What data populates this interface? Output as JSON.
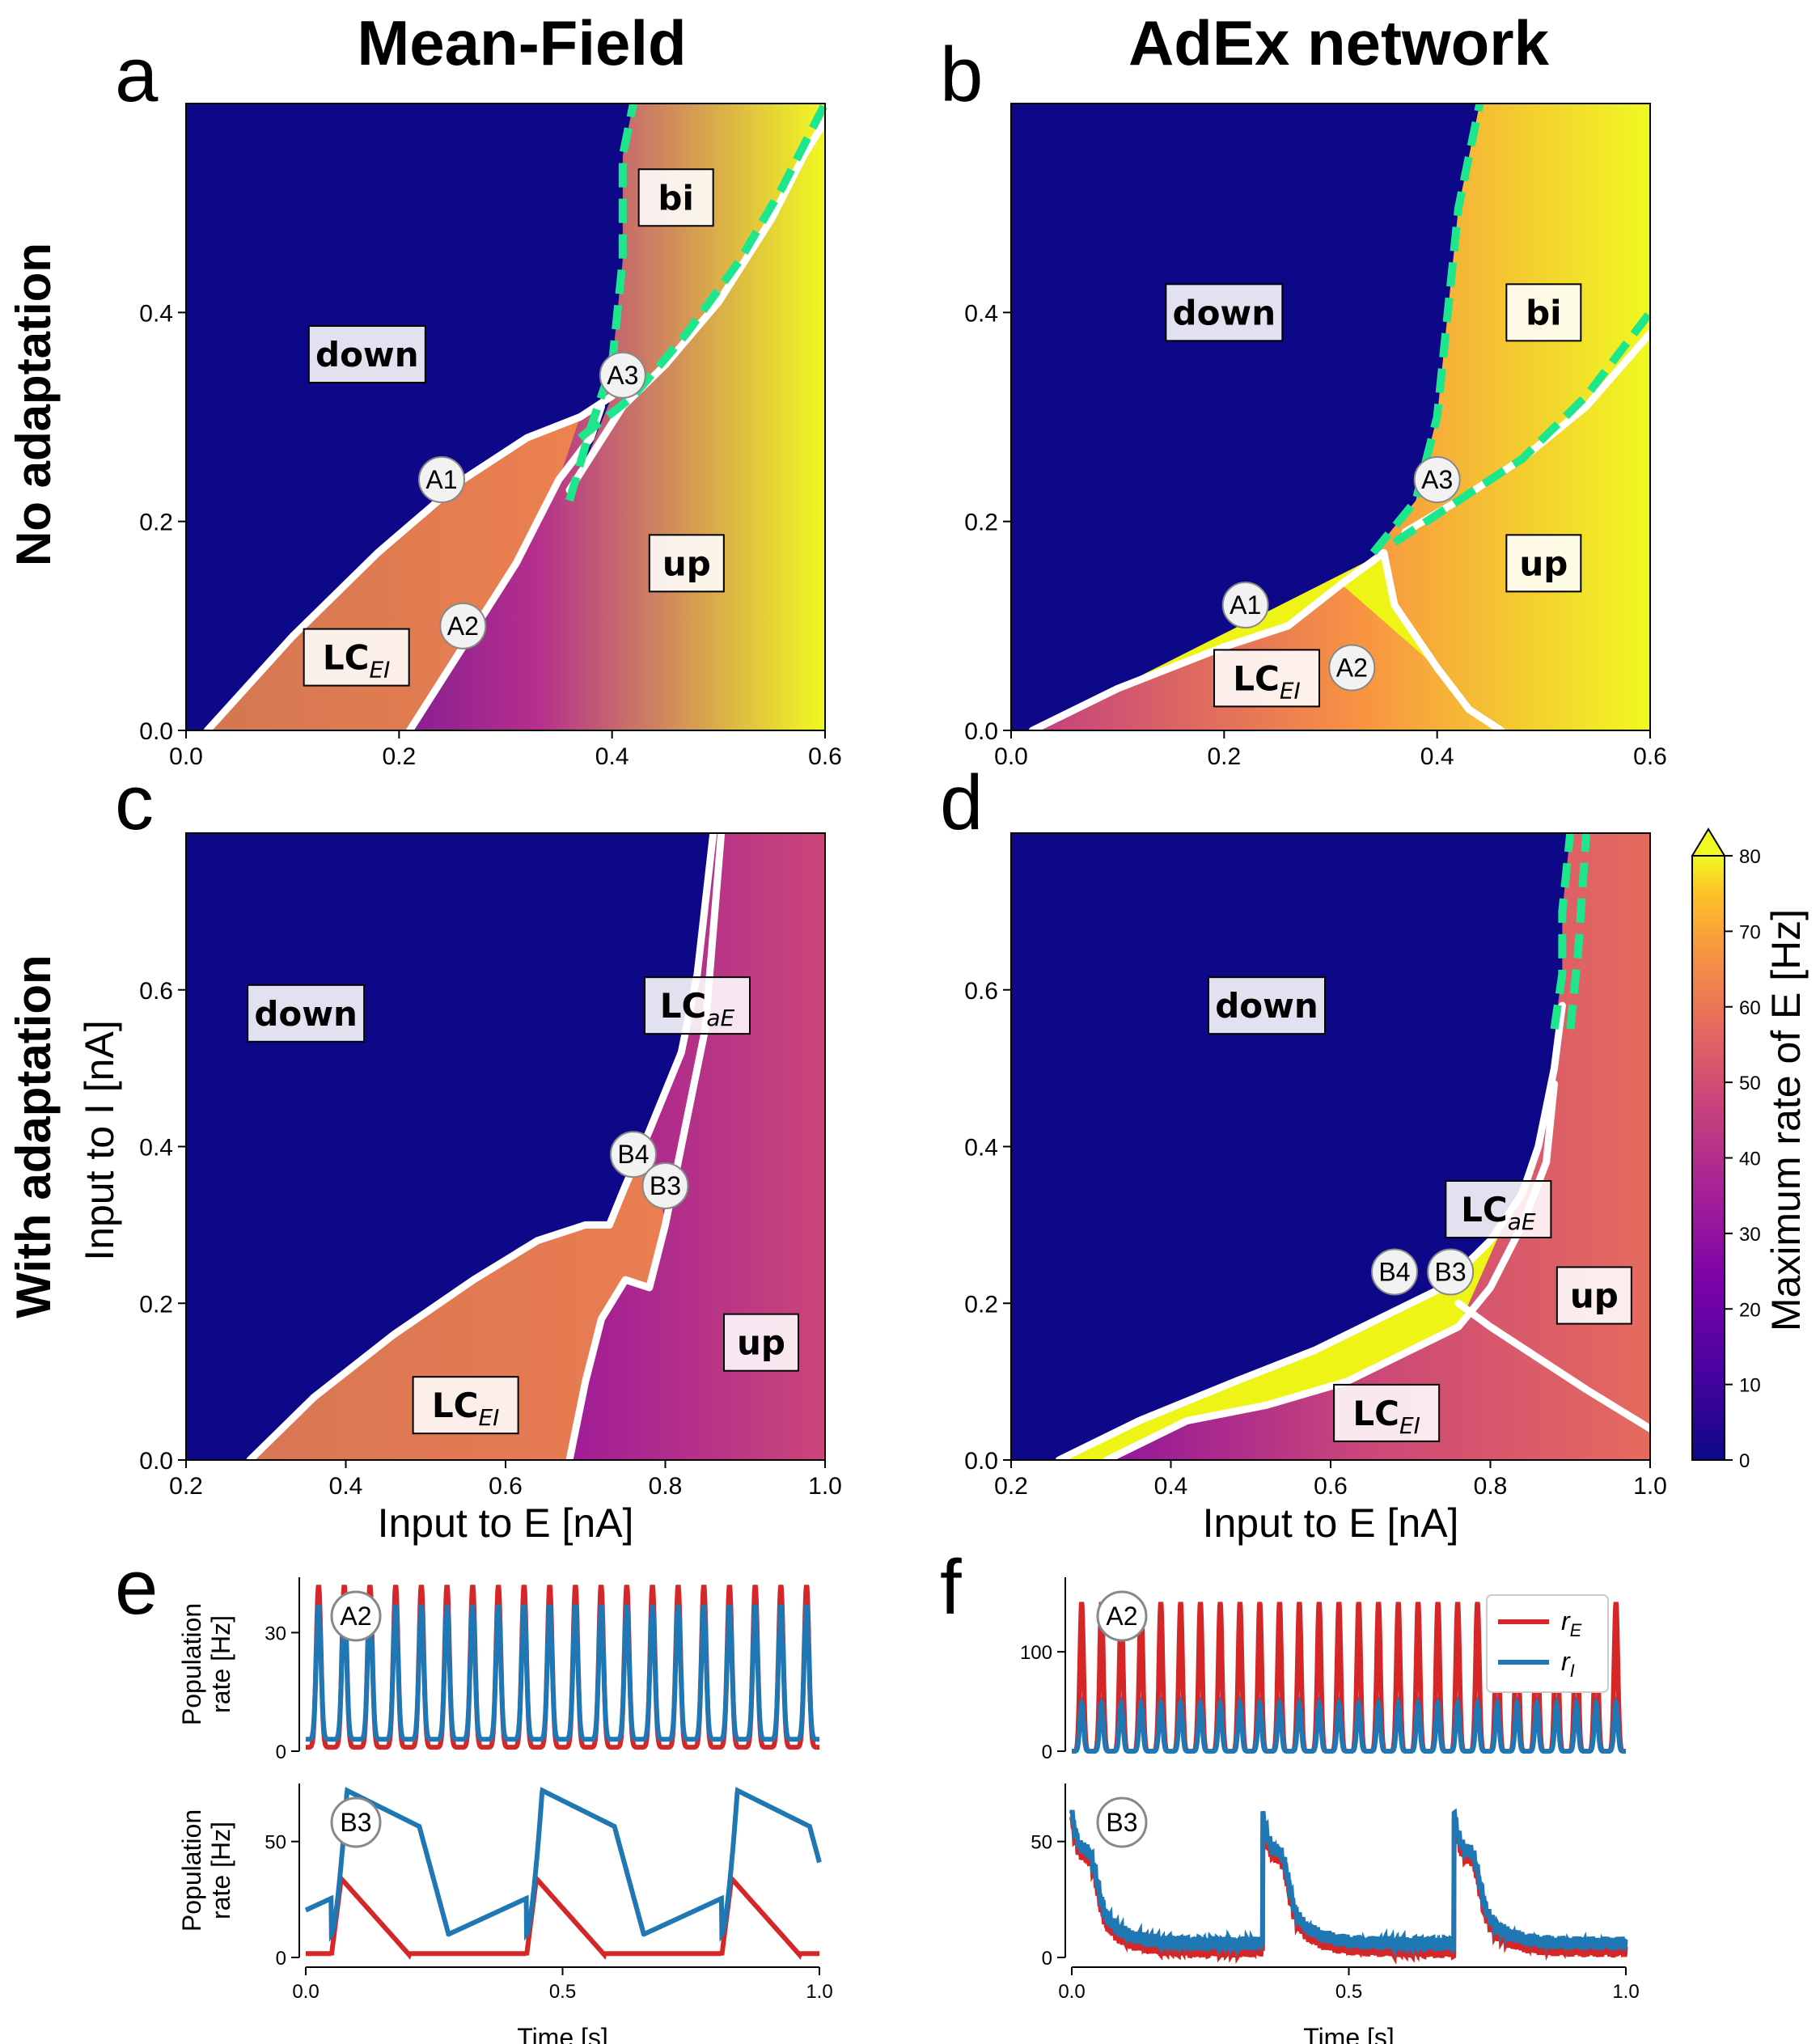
{
  "titles": {
    "col1": "Mean-Field",
    "col2": "AdEx network"
  },
  "panel_letters": [
    "a",
    "b",
    "c",
    "d",
    "e",
    "f"
  ],
  "row_labels": {
    "row1": "No adaptation",
    "row2": "With adaptation"
  },
  "colorbar": {
    "label": "Maximum rate of E [Hz]",
    "ticks": [
      "0",
      "10",
      "20",
      "30",
      "40",
      "50",
      "60",
      "70",
      "80"
    ],
    "range": [
      0,
      80
    ]
  },
  "colors": {
    "green": "#1ee68c",
    "white": "#ffffff",
    "rE": "#d62728",
    "rI": "#1f77b4",
    "navy": "#0d0887"
  },
  "icons": {
    "colorbar_extend": "triangle-up"
  },
  "chart_data": [
    {
      "panel": "a",
      "type": "heatmap",
      "title": "Mean-Field",
      "xlabel": "",
      "ylabel": "",
      "xlim": [
        0.0,
        0.6
      ],
      "ylim": [
        0.0,
        0.6
      ],
      "xticks": [
        "0.0",
        "0.2",
        "0.4",
        "0.6"
      ],
      "yticks": [
        "0.0",
        "0.2",
        "0.4"
      ],
      "regions": [
        {
          "label": "down",
          "x": 0.17,
          "y": 0.36
        },
        {
          "label": "bi",
          "x": 0.46,
          "y": 0.51
        },
        {
          "label": "up",
          "x": 0.47,
          "y": 0.16
        },
        {
          "label": "LC",
          "sub": "EI",
          "x": 0.16,
          "y": 0.07
        }
      ],
      "points": [
        {
          "label": "A1",
          "x": 0.24,
          "y": 0.24
        },
        {
          "label": "A2",
          "x": 0.26,
          "y": 0.1
        },
        {
          "label": "A3",
          "x": 0.41,
          "y": 0.34
        }
      ],
      "white_boundaries": [
        [
          [
            0.02,
            0.0
          ],
          [
            0.1,
            0.09
          ],
          [
            0.18,
            0.17
          ],
          [
            0.26,
            0.24
          ],
          [
            0.32,
            0.28
          ],
          [
            0.37,
            0.3
          ],
          [
            0.4,
            0.32
          ]
        ],
        [
          [
            0.21,
            0.0
          ],
          [
            0.26,
            0.08
          ],
          [
            0.31,
            0.16
          ],
          [
            0.35,
            0.24
          ],
          [
            0.38,
            0.28
          ],
          [
            0.39,
            0.31
          ]
        ],
        [
          [
            0.36,
            0.23
          ],
          [
            0.41,
            0.31
          ],
          [
            0.45,
            0.35
          ],
          [
            0.5,
            0.41
          ],
          [
            0.55,
            0.49
          ],
          [
            0.58,
            0.55
          ],
          [
            0.61,
            0.6
          ]
        ]
      ],
      "green_boundaries": [
        [
          [
            0.36,
            0.22
          ],
          [
            0.38,
            0.29
          ],
          [
            0.4,
            0.35
          ],
          [
            0.41,
            0.45
          ],
          [
            0.41,
            0.55
          ],
          [
            0.42,
            0.6
          ]
        ],
        [
          [
            0.37,
            0.28
          ],
          [
            0.42,
            0.32
          ],
          [
            0.47,
            0.38
          ],
          [
            0.52,
            0.45
          ],
          [
            0.56,
            0.52
          ],
          [
            0.6,
            0.6
          ]
        ]
      ]
    },
    {
      "panel": "b",
      "type": "heatmap",
      "title": "AdEx network",
      "xlabel": "",
      "ylabel": "",
      "xlim": [
        0.0,
        0.6
      ],
      "ylim": [
        0.0,
        0.6
      ],
      "xticks": [
        "0.0",
        "0.2",
        "0.4",
        "0.6"
      ],
      "yticks": [
        "0.0",
        "0.2",
        "0.4"
      ],
      "regions": [
        {
          "label": "down",
          "x": 0.2,
          "y": 0.4
        },
        {
          "label": "bi",
          "x": 0.5,
          "y": 0.4
        },
        {
          "label": "up",
          "x": 0.5,
          "y": 0.16
        },
        {
          "label": "LC",
          "sub": "EI",
          "x": 0.24,
          "y": 0.05
        }
      ],
      "points": [
        {
          "label": "A1",
          "x": 0.22,
          "y": 0.12
        },
        {
          "label": "A2",
          "x": 0.32,
          "y": 0.06
        },
        {
          "label": "A3",
          "x": 0.4,
          "y": 0.24
        }
      ],
      "white_boundaries": [
        [
          [
            0.02,
            0.0
          ],
          [
            0.1,
            0.04
          ],
          [
            0.2,
            0.08
          ],
          [
            0.26,
            0.1
          ],
          [
            0.31,
            0.14
          ],
          [
            0.35,
            0.17
          ]
        ],
        [
          [
            0.35,
            0.17
          ],
          [
            0.36,
            0.12
          ],
          [
            0.38,
            0.09
          ],
          [
            0.4,
            0.06
          ],
          [
            0.43,
            0.02
          ],
          [
            0.46,
            0.0
          ]
        ],
        [
          [
            0.37,
            0.19
          ],
          [
            0.42,
            0.22
          ],
          [
            0.48,
            0.26
          ],
          [
            0.54,
            0.31
          ],
          [
            0.6,
            0.38
          ]
        ]
      ],
      "green_boundaries": [
        [
          [
            0.34,
            0.17
          ],
          [
            0.38,
            0.22
          ],
          [
            0.4,
            0.3
          ],
          [
            0.41,
            0.4
          ],
          [
            0.42,
            0.5
          ],
          [
            0.44,
            0.6
          ]
        ],
        [
          [
            0.36,
            0.18
          ],
          [
            0.42,
            0.22
          ],
          [
            0.48,
            0.26
          ],
          [
            0.54,
            0.32
          ],
          [
            0.6,
            0.4
          ]
        ]
      ]
    },
    {
      "panel": "c",
      "type": "heatmap",
      "xlabel": "Input to E [nA]",
      "ylabel": "Input to I [nA]",
      "xlim": [
        0.2,
        1.0
      ],
      "ylim": [
        0.0,
        0.8
      ],
      "xticks": [
        "0.2",
        "0.4",
        "0.6",
        "0.8",
        "1.0"
      ],
      "yticks": [
        "0.0",
        "0.2",
        "0.4",
        "0.6"
      ],
      "regions": [
        {
          "label": "down",
          "x": 0.35,
          "y": 0.57
        },
        {
          "label": "LC",
          "sub": "aE",
          "x": 0.84,
          "y": 0.58
        },
        {
          "label": "up",
          "x": 0.92,
          "y": 0.15
        },
        {
          "label": "LC",
          "sub": "EI",
          "x": 0.55,
          "y": 0.07
        }
      ],
      "points": [
        {
          "label": "B4",
          "x": 0.76,
          "y": 0.39
        },
        {
          "label": "B3",
          "x": 0.8,
          "y": 0.35
        }
      ],
      "white_boundaries": [
        [
          [
            0.28,
            0.0
          ],
          [
            0.36,
            0.08
          ],
          [
            0.46,
            0.16
          ],
          [
            0.56,
            0.23
          ],
          [
            0.64,
            0.28
          ],
          [
            0.7,
            0.3
          ],
          [
            0.73,
            0.3
          ],
          [
            0.75,
            0.35
          ],
          [
            0.78,
            0.42
          ],
          [
            0.82,
            0.52
          ],
          [
            0.84,
            0.62
          ],
          [
            0.86,
            0.8
          ]
        ],
        [
          [
            0.68,
            0.0
          ],
          [
            0.7,
            0.1
          ],
          [
            0.72,
            0.18
          ],
          [
            0.75,
            0.23
          ],
          [
            0.78,
            0.22
          ],
          [
            0.8,
            0.3
          ],
          [
            0.82,
            0.4
          ],
          [
            0.85,
            0.55
          ],
          [
            0.87,
            0.8
          ]
        ]
      ],
      "green_boundaries": []
    },
    {
      "panel": "d",
      "type": "heatmap",
      "xlabel": "Input to E [nA]",
      "ylabel": "",
      "xlim": [
        0.2,
        1.0
      ],
      "ylim": [
        0.0,
        0.8
      ],
      "xticks": [
        "0.2",
        "0.4",
        "0.6",
        "0.8",
        "1.0"
      ],
      "yticks": [
        "0.0",
        "0.2",
        "0.4",
        "0.6"
      ],
      "regions": [
        {
          "label": "down",
          "x": 0.52,
          "y": 0.58
        },
        {
          "label": "LC",
          "sub": "aE",
          "x": 0.81,
          "y": 0.32
        },
        {
          "label": "up",
          "x": 0.93,
          "y": 0.21
        },
        {
          "label": "LC",
          "sub": "EI",
          "x": 0.67,
          "y": 0.06
        }
      ],
      "points": [
        {
          "label": "B4",
          "x": 0.68,
          "y": 0.24
        },
        {
          "label": "B3",
          "x": 0.75,
          "y": 0.24
        }
      ],
      "white_boundaries": [
        [
          [
            0.26,
            0.0
          ],
          [
            0.36,
            0.05
          ],
          [
            0.48,
            0.1
          ],
          [
            0.58,
            0.14
          ],
          [
            0.66,
            0.18
          ],
          [
            0.74,
            0.22
          ],
          [
            0.8,
            0.28
          ],
          [
            0.84,
            0.34
          ],
          [
            0.86,
            0.4
          ],
          [
            0.88,
            0.5
          ],
          [
            0.89,
            0.58
          ]
        ],
        [
          [
            0.32,
            0.0
          ],
          [
            0.42,
            0.05
          ],
          [
            0.52,
            0.07
          ],
          [
            0.62,
            0.1
          ],
          [
            0.7,
            0.14
          ],
          [
            0.76,
            0.17
          ],
          [
            0.8,
            0.22
          ],
          [
            0.84,
            0.3
          ],
          [
            0.87,
            0.38
          ],
          [
            0.88,
            0.48
          ]
        ],
        [
          [
            0.76,
            0.2
          ],
          [
            0.8,
            0.17
          ],
          [
            0.86,
            0.13
          ],
          [
            0.92,
            0.09
          ],
          [
            1.0,
            0.04
          ]
        ]
      ],
      "green_boundaries": [
        [
          [
            0.88,
            0.55
          ],
          [
            0.89,
            0.62
          ],
          [
            0.89,
            0.7
          ],
          [
            0.9,
            0.8
          ]
        ],
        [
          [
            0.9,
            0.55
          ],
          [
            0.91,
            0.65
          ],
          [
            0.92,
            0.8
          ]
        ]
      ]
    },
    {
      "panel": "e",
      "type": "line",
      "subplots": [
        {
          "label": "A2",
          "ylabel": "Population\nrate [Hz]",
          "xlim": [
            0.0,
            1.0
          ],
          "ylim": [
            0,
            44
          ],
          "yticks": [
            "0",
            "30"
          ],
          "xticks": [],
          "series": [
            {
              "name": "rE",
              "kind": "osc",
              "cycles": 20,
              "min": 1,
              "max": 42
            },
            {
              "name": "rI",
              "kind": "osc",
              "cycles": 20,
              "min": 3,
              "max": 37
            }
          ]
        },
        {
          "label": "B3",
          "ylabel": "Population\nrate [Hz]",
          "xlabel": "Time [s]",
          "xlim": [
            0.0,
            1.0
          ],
          "ylim": [
            0,
            75
          ],
          "yticks": [
            "0",
            "50"
          ],
          "xticks": [
            "0.0",
            "0.5",
            "1.0"
          ],
          "series": [
            {
              "name": "rE",
              "kind": "burst",
              "period": 0.38,
              "phase": 0.05,
              "min": 1,
              "max": 34
            },
            {
              "name": "rI",
              "kind": "burst",
              "period": 0.38,
              "phase": 0.05,
              "min": 10,
              "max": 72
            }
          ]
        }
      ]
    },
    {
      "panel": "f",
      "type": "line",
      "legend": [
        "r_E",
        "r_I"
      ],
      "subplots": [
        {
          "label": "A2",
          "ylabel": "",
          "xlim": [
            0.0,
            1.0
          ],
          "ylim": [
            0,
            175
          ],
          "yticks": [
            "0",
            "100"
          ],
          "xticks": [],
          "series": [
            {
              "name": "rE",
              "kind": "osc",
              "cycles": 28,
              "min": 0,
              "max": 150
            },
            {
              "name": "rI",
              "kind": "osc",
              "cycles": 28,
              "min": 0,
              "max": 48
            }
          ]
        },
        {
          "label": "B3",
          "ylabel": "",
          "xlabel": "Time [s]",
          "xlim": [
            0.0,
            1.0
          ],
          "ylim": [
            0,
            75
          ],
          "yticks": [
            "0",
            "50"
          ],
          "xticks": [
            "0.0",
            "0.5",
            "1.0"
          ],
          "series": [
            {
              "name": "rE",
              "kind": "noisyburst",
              "period": 0.345,
              "phase": 0.0,
              "min": 3,
              "max": 65
            },
            {
              "name": "rI",
              "kind": "noisyburst",
              "period": 0.345,
              "phase": 0.0,
              "min": 6,
              "max": 68
            }
          ]
        }
      ]
    }
  ]
}
